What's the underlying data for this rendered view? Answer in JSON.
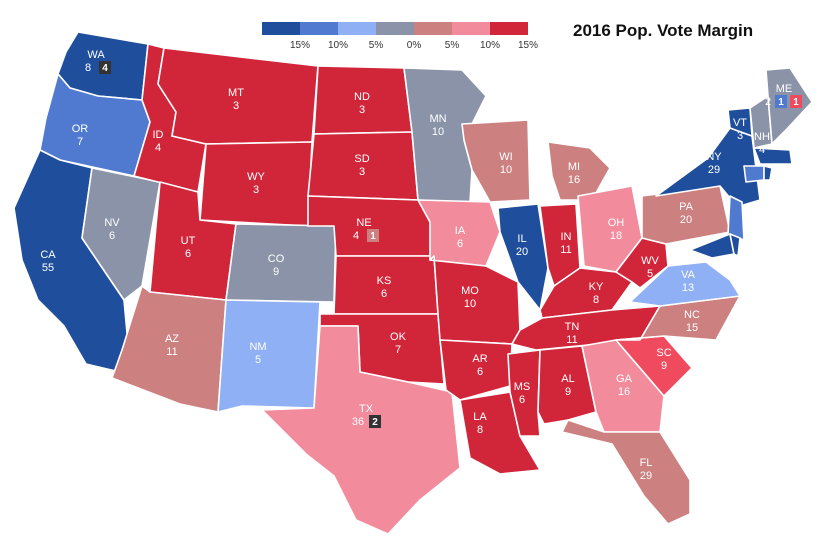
{
  "title": "2016 Pop. Vote Margin",
  "legend": {
    "labels": [
      "15%",
      "10%",
      "5%",
      "0%",
      "5%",
      "10%",
      "15%"
    ],
    "colors": [
      "#1f4e9c",
      "#4f7ad0",
      "#8fb0f5",
      "#8a93a8",
      "#cc8080",
      "#f28b9c",
      "#d1263a"
    ]
  },
  "colors": {
    "solid_d": "#1f4e9c",
    "likely_d": "#4f7ad0",
    "lean_d": "#8fb0f5",
    "tossup": "#8a93a8",
    "tilt_r": "#cc8080",
    "lean_r": "#f28b9c",
    "likely_r": "#f04a5e",
    "solid_r": "#d1263a",
    "badge": "#333333"
  },
  "states": [
    {
      "abbr": "WA",
      "ev": "8",
      "badge": "4",
      "rating": "solid_d"
    },
    {
      "abbr": "OR",
      "ev": "7",
      "rating": "likely_d"
    },
    {
      "abbr": "CA",
      "ev": "55",
      "rating": "solid_d"
    },
    {
      "abbr": "NV",
      "ev": "6",
      "rating": "tossup"
    },
    {
      "abbr": "ID",
      "ev": "4",
      "rating": "solid_r"
    },
    {
      "abbr": "MT",
      "ev": "3",
      "rating": "solid_r"
    },
    {
      "abbr": "WY",
      "ev": "3",
      "rating": "solid_r"
    },
    {
      "abbr": "UT",
      "ev": "6",
      "rating": "solid_r"
    },
    {
      "abbr": "AZ",
      "ev": "11",
      "rating": "tilt_r"
    },
    {
      "abbr": "CO",
      "ev": "9",
      "rating": "tossup"
    },
    {
      "abbr": "NM",
      "ev": "5",
      "rating": "lean_d"
    },
    {
      "abbr": "ND",
      "ev": "3",
      "rating": "solid_r"
    },
    {
      "abbr": "SD",
      "ev": "3",
      "rating": "solid_r"
    },
    {
      "abbr": "NE",
      "ev": "4",
      "badge": "1",
      "rating": "solid_r"
    },
    {
      "abbr": "KS",
      "ev": "6",
      "rating": "solid_r"
    },
    {
      "abbr": "OK",
      "ev": "7",
      "rating": "solid_r"
    },
    {
      "abbr": "TX",
      "ev": "36",
      "badge": "2",
      "rating": "lean_r"
    },
    {
      "abbr": "MN",
      "ev": "10",
      "rating": "tossup"
    },
    {
      "abbr": "IA",
      "ev": "6",
      "rating": "lean_r"
    },
    {
      "abbr": "MO",
      "ev": "10",
      "rating": "solid_r"
    },
    {
      "abbr": "AR",
      "ev": "6",
      "rating": "solid_r"
    },
    {
      "abbr": "LA",
      "ev": "8",
      "rating": "solid_r"
    },
    {
      "abbr": "WI",
      "ev": "10",
      "rating": "tilt_r"
    },
    {
      "abbr": "IL",
      "ev": "20",
      "rating": "solid_d"
    },
    {
      "abbr": "MI",
      "ev": "16",
      "rating": "tilt_r"
    },
    {
      "abbr": "IN",
      "ev": "11",
      "rating": "solid_r"
    },
    {
      "abbr": "OH",
      "ev": "18",
      "rating": "lean_r"
    },
    {
      "abbr": "KY",
      "ev": "8",
      "rating": "solid_r"
    },
    {
      "abbr": "TN",
      "ev": "11",
      "rating": "solid_r"
    },
    {
      "abbr": "MS",
      "ev": "6",
      "rating": "solid_r"
    },
    {
      "abbr": "AL",
      "ev": "9",
      "rating": "solid_r"
    },
    {
      "abbr": "GA",
      "ev": "16",
      "rating": "lean_r"
    },
    {
      "abbr": "FL",
      "ev": "29",
      "rating": "tilt_r"
    },
    {
      "abbr": "SC",
      "ev": "9",
      "rating": "likely_r"
    },
    {
      "abbr": "NC",
      "ev": "15",
      "rating": "tilt_r"
    },
    {
      "abbr": "VA",
      "ev": "13",
      "rating": "lean_d"
    },
    {
      "abbr": "WV",
      "ev": "5",
      "rating": "solid_r"
    },
    {
      "abbr": "PA",
      "ev": "20",
      "rating": "tilt_r"
    },
    {
      "abbr": "NY",
      "ev": "29",
      "rating": "solid_d"
    },
    {
      "abbr": "VT",
      "ev": "3",
      "rating": "solid_d"
    },
    {
      "abbr": "NH",
      "ev": "4",
      "rating": "tossup"
    },
    {
      "abbr": "ME",
      "ev": "2",
      "badges": [
        "1",
        "1"
      ],
      "rating": "tossup"
    },
    {
      "abbr": "NJ",
      "rating": "likely_d"
    },
    {
      "abbr": "MD",
      "rating": "solid_d"
    },
    {
      "abbr": "DE",
      "rating": "solid_d"
    },
    {
      "abbr": "MA",
      "rating": "solid_d"
    },
    {
      "abbr": "CT",
      "rating": "likely_d"
    },
    {
      "abbr": "RI",
      "rating": "solid_d"
    }
  ]
}
